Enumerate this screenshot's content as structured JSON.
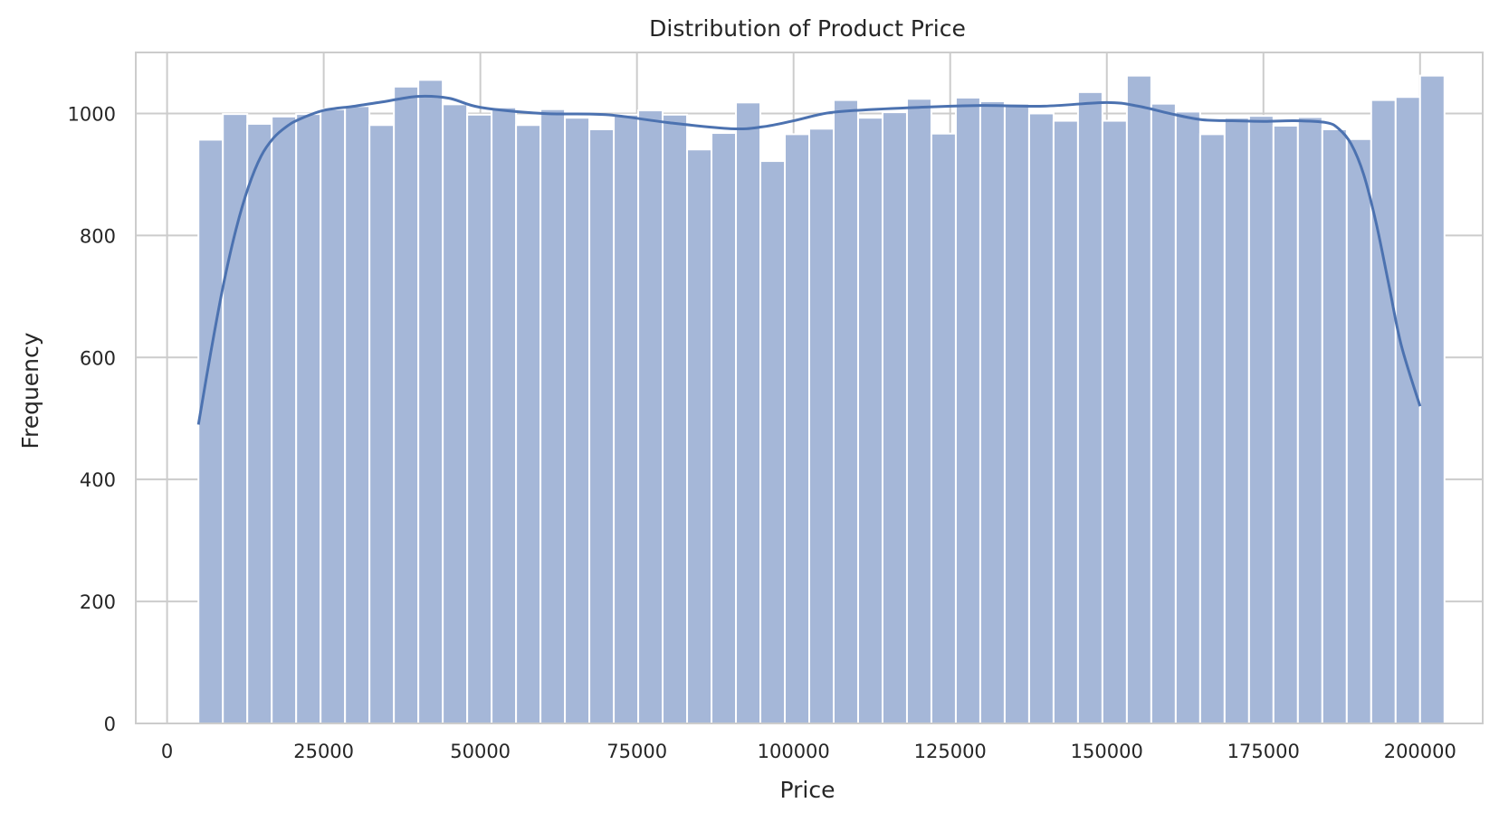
{
  "colors": {
    "bar_fill": "#a5b7d8",
    "bar_edge": "#ffffff",
    "kde_line": "#4c72b0",
    "grid": "#cccccc",
    "frame": "#cccccc",
    "text": "#262626",
    "background": "#ffffff"
  },
  "chart_data": {
    "type": "bar",
    "subtype": "histogram_with_kde",
    "title": "Distribution of Product Price",
    "xlabel": "Price",
    "ylabel": "Frequency",
    "xlim": [
      -5000,
      210000
    ],
    "ylim": [
      0,
      1100
    ],
    "xticks": [
      0,
      25000,
      50000,
      75000,
      100000,
      125000,
      150000,
      175000,
      200000
    ],
    "yticks": [
      0,
      200,
      400,
      600,
      800,
      1000
    ],
    "grid": true,
    "bins": {
      "start": 5000,
      "width": 3900,
      "counts": [
        957,
        999,
        983,
        995,
        999,
        1007,
        1012,
        981,
        1044,
        1055,
        1015,
        998,
        1010,
        981,
        1007,
        993,
        974,
        998,
        1005,
        998,
        941,
        968,
        1018,
        922,
        966,
        975,
        1022,
        993,
        1002,
        1024,
        967,
        1026,
        1020,
        1016,
        1000,
        988,
        1035,
        988,
        1062,
        1016,
        1003,
        966,
        993,
        996,
        980,
        994,
        974,
        958,
        1022,
        1027,
        1062
      ]
    },
    "kde": {
      "x": [
        5000,
        7000,
        9000,
        11000,
        13000,
        15000,
        17000,
        19000,
        21000,
        25000,
        30000,
        35000,
        40000,
        45000,
        50000,
        60000,
        70000,
        80000,
        90000,
        95000,
        100000,
        105000,
        110000,
        120000,
        130000,
        140000,
        150000,
        155000,
        160000,
        165000,
        170000,
        175000,
        180000,
        185000,
        187000,
        189000,
        191000,
        193000,
        195000,
        197000,
        200000
      ],
      "y": [
        490,
        610,
        720,
        810,
        880,
        930,
        960,
        978,
        990,
        1005,
        1012,
        1020,
        1028,
        1025,
        1010,
        1000,
        998,
        985,
        975,
        978,
        988,
        1000,
        1005,
        1010,
        1013,
        1012,
        1018,
        1012,
        1000,
        990,
        988,
        987,
        988,
        985,
        975,
        950,
        900,
        820,
        720,
        620,
        520
      ]
    }
  }
}
